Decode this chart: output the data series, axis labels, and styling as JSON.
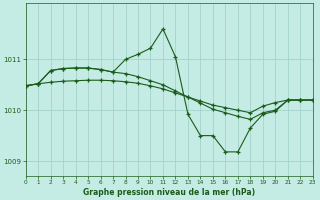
{
  "title": "Graphe pression niveau de la mer (hPa)",
  "bg_color": "#c5ebe5",
  "line_color": "#1a5c1a",
  "grid_color": "#9ecfc7",
  "xlim": [
    0,
    23
  ],
  "ylim": [
    1008.7,
    1012.1
  ],
  "yticks": [
    1009,
    1010,
    1011
  ],
  "xticks": [
    0,
    1,
    2,
    3,
    4,
    5,
    6,
    7,
    8,
    9,
    10,
    11,
    12,
    13,
    14,
    15,
    16,
    17,
    18,
    19,
    20,
    21,
    22,
    23
  ],
  "line1_x": [
    0,
    1,
    2,
    3,
    4,
    5,
    6,
    7,
    8,
    9,
    10,
    11,
    12,
    13,
    14,
    15,
    16,
    17,
    18,
    19,
    20,
    21,
    22,
    23
  ],
  "line1_y": [
    1010.48,
    1010.52,
    1010.55,
    1010.57,
    1010.58,
    1010.59,
    1010.59,
    1010.58,
    1010.56,
    1010.53,
    1010.48,
    1010.42,
    1010.34,
    1010.26,
    1010.18,
    1010.1,
    1010.05,
    1010.0,
    1009.95,
    1010.08,
    1010.15,
    1010.2,
    1010.2,
    1010.2
  ],
  "line2_x": [
    0,
    1,
    2,
    3,
    4,
    5,
    6,
    7,
    8,
    9,
    10,
    11,
    12,
    13,
    14,
    15,
    16,
    17,
    18,
    19,
    20,
    21,
    22,
    23
  ],
  "line2_y": [
    1010.48,
    1010.52,
    1010.78,
    1010.82,
    1010.83,
    1010.83,
    1010.8,
    1010.75,
    1010.72,
    1010.66,
    1010.58,
    1010.5,
    1010.38,
    1010.26,
    1010.14,
    1010.02,
    1009.95,
    1009.88,
    1009.82,
    1009.95,
    1010.0,
    1010.2,
    1010.2,
    1010.2
  ],
  "line3_x": [
    0,
    1,
    2,
    3,
    4,
    5,
    6,
    7,
    8,
    9,
    10,
    11,
    12,
    13,
    14,
    15,
    16,
    17,
    18,
    19,
    20,
    21,
    22,
    23
  ],
  "line3_y": [
    1010.48,
    1010.52,
    1010.78,
    1010.82,
    1010.83,
    1010.83,
    1010.8,
    1010.75,
    1011.0,
    1011.1,
    1011.22,
    1011.6,
    1011.05,
    1009.92,
    1009.5,
    1009.5,
    1009.18,
    1009.18,
    1009.65,
    1009.92,
    1009.98,
    1010.2,
    1010.2,
    1010.2
  ]
}
